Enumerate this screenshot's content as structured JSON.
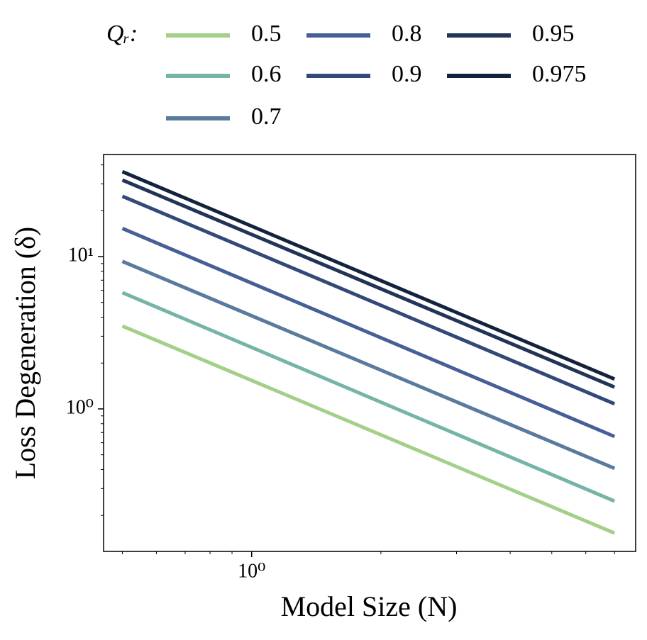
{
  "chart_data": {
    "type": "line",
    "xlabel": "Model Size (N)",
    "ylabel": "Loss Degeneration (δ)",
    "legend_title": "Qᵣ:",
    "legend": "top",
    "xscale": "log",
    "yscale": "log",
    "x": [
      0.5,
      7
    ],
    "series": [
      {
        "name": "0.5",
        "color": "#a3d088",
        "values": [
          3.5,
          0.153
        ]
      },
      {
        "name": "0.6",
        "color": "#75b4a6",
        "values": [
          5.8,
          0.248
        ]
      },
      {
        "name": "0.7",
        "color": "#5a7b9e",
        "values": [
          9.3,
          0.407
        ]
      },
      {
        "name": "0.8",
        "color": "#475f98",
        "values": [
          15.3,
          0.659
        ]
      },
      {
        "name": "0.9",
        "color": "#34497a",
        "values": [
          24.9,
          1.08
        ]
      },
      {
        "name": "0.95",
        "color": "#223457",
        "values": [
          31.8,
          1.39
        ]
      },
      {
        "name": "0.975",
        "color": "#14233d",
        "values": [
          36.1,
          1.57
        ]
      }
    ],
    "xlim": [
      0.452,
      7.84
    ],
    "ylim": [
      0.116,
      46.8
    ],
    "xticks": [
      {
        "value": 1,
        "label": "10⁰"
      }
    ],
    "yticks": [
      {
        "value": 1,
        "label": "10⁰"
      },
      {
        "value": 10,
        "label": "10¹"
      }
    ],
    "xminorticks": [
      0.5,
      0.6,
      0.7,
      0.8,
      0.9,
      2,
      3,
      4,
      5,
      6,
      7
    ],
    "yminorticks": [
      0.2,
      0.3,
      0.4,
      0.5,
      0.6,
      0.7,
      0.8,
      0.9,
      2,
      3,
      4,
      5,
      6,
      7,
      8,
      9,
      20,
      30,
      40
    ]
  }
}
